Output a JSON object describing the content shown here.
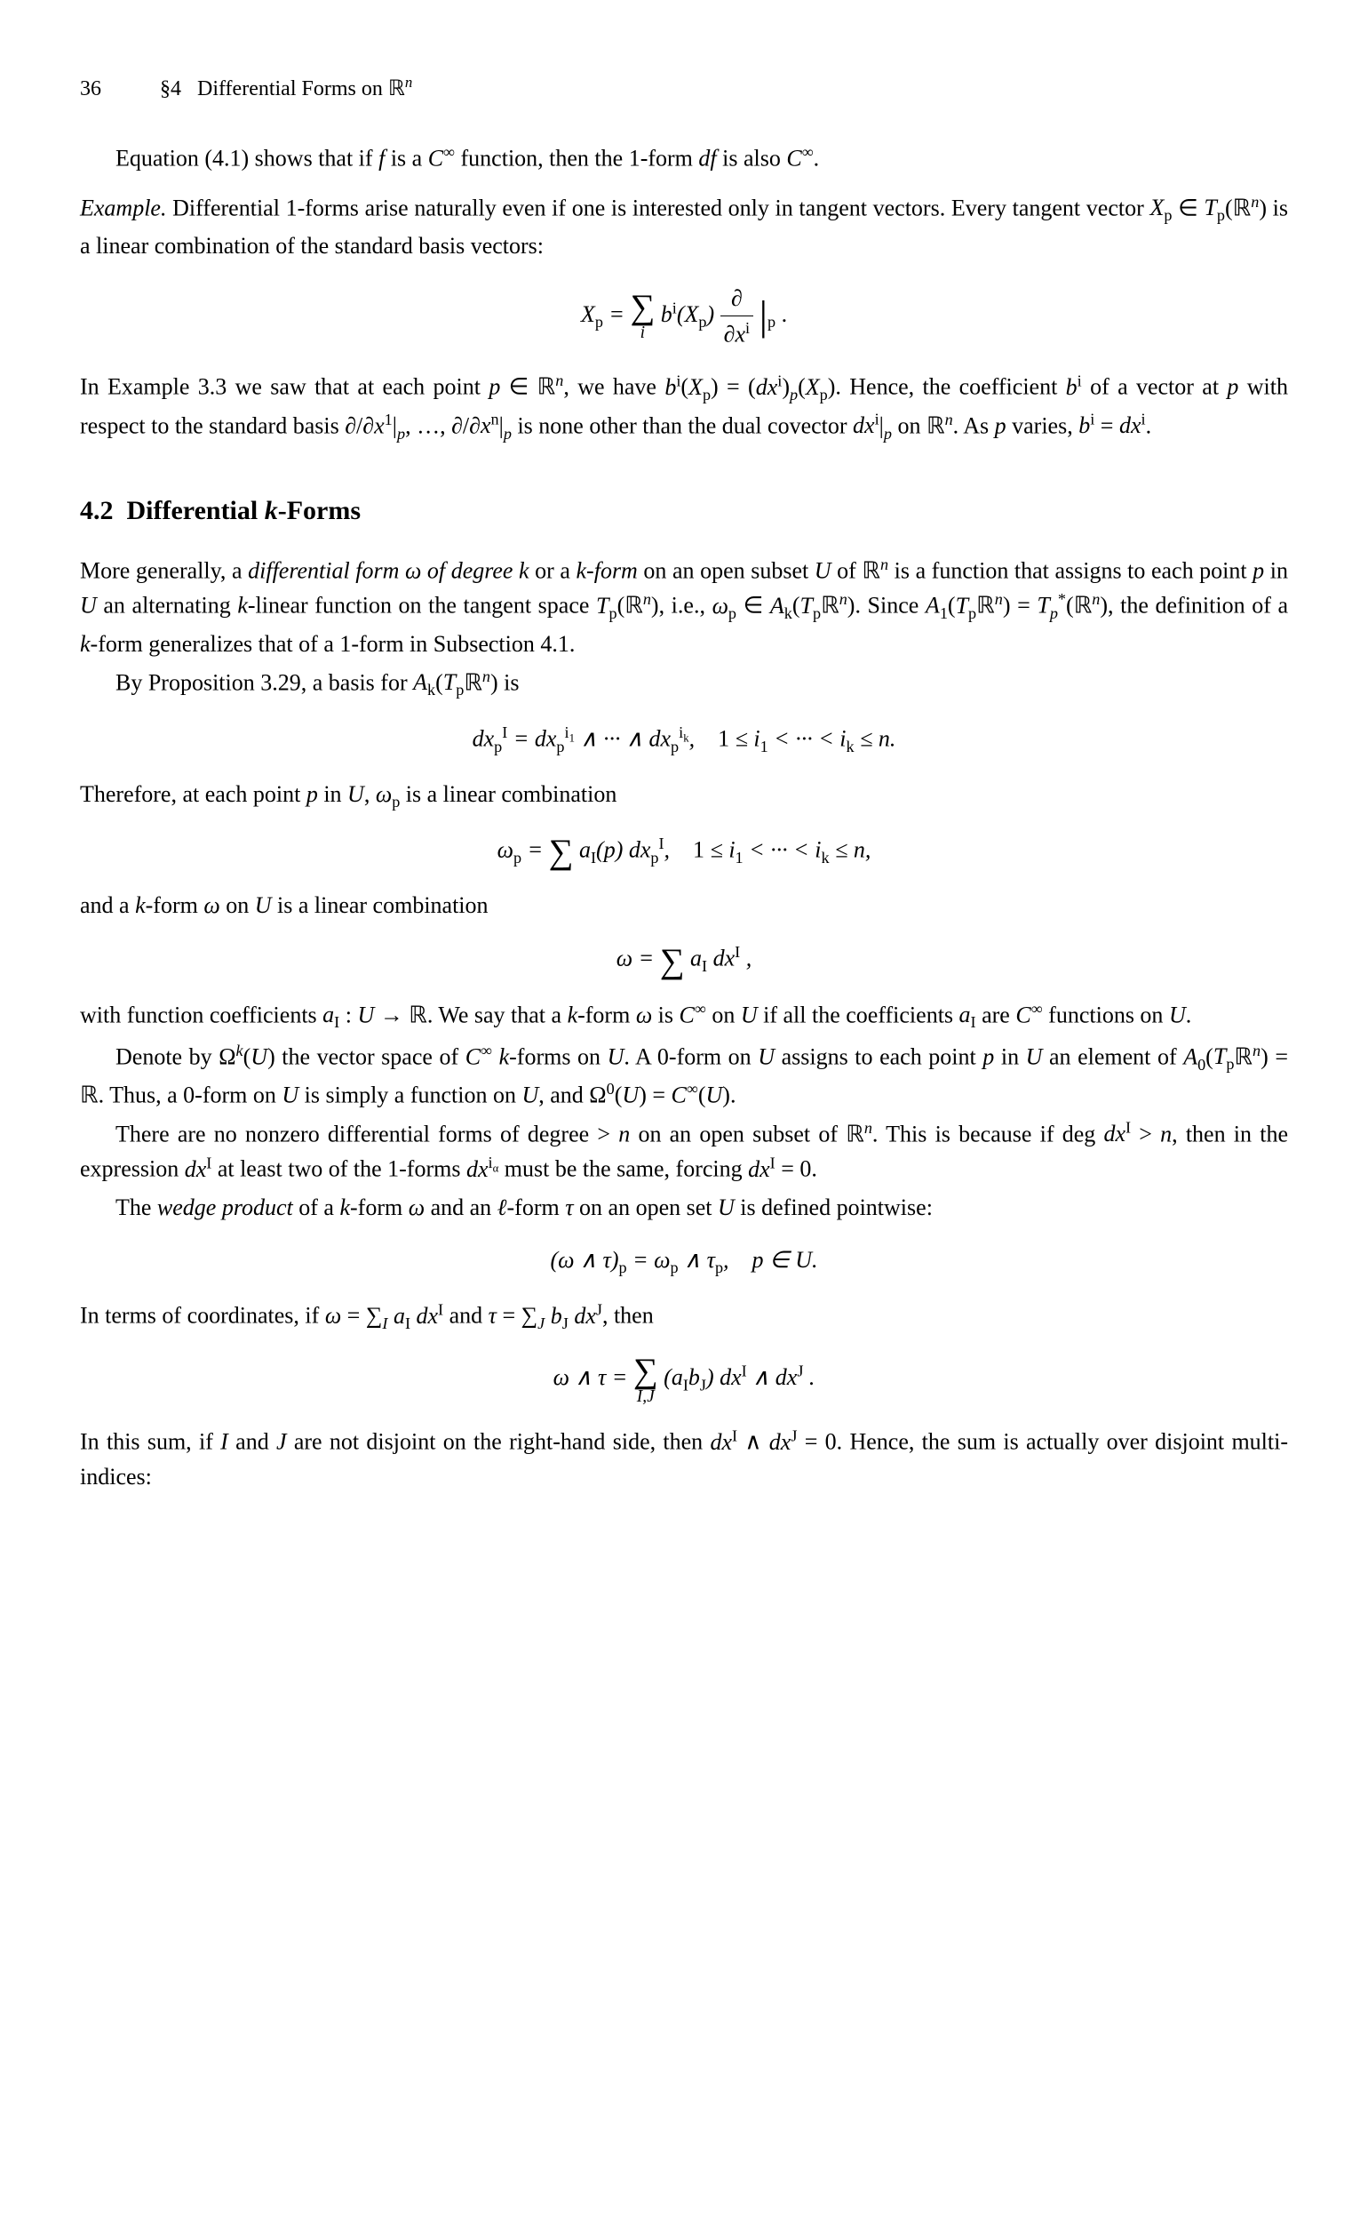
{
  "header": {
    "page_number": "36",
    "section_label": "§4   Differential Forms on ℝⁿ"
  },
  "para1": "Equation (4.1) shows that if f is a C∞ function, then the 1-form df is also C∞.",
  "example_label": "Example.",
  "para2": "Differential 1-forms arise naturally even if one is interested only in tangent vectors. Every tangent vector Xₚ ∈ Tₚ(ℝⁿ) is a linear combination of the standard basis vectors:",
  "eq1_lhs": "Xₚ = ",
  "eq1_sum_sub": "i",
  "eq1_rhs1": "bⁱ(Xₚ) ",
  "eq1_frac_num": "∂",
  "eq1_frac_den": "∂xⁱ",
  "eq1_sub": "p",
  "eq1_dot": " .",
  "para3": "In Example 3.3 we saw that at each point p ∈ ℝⁿ, we have bⁱ(Xₚ) = (dxⁱ)ₚ(Xₚ). Hence, the coefficient bⁱ of a vector at p with respect to the standard basis ∂/∂x¹|ₚ, …, ∂/∂xⁿ|ₚ is none other than the dual covector dxⁱ|ₚ on ℝⁿ. As p varies, bⁱ = dxⁱ.",
  "section_title": "4.2  Differential k-Forms",
  "para4": "More generally, a differential form ω of degree k or a k-form on an open subset U of ℝⁿ is a function that assigns to each point p in U an alternating k-linear function on the tangent space Tₚ(ℝⁿ), i.e., ωₚ ∈ Aₖ(Tₚℝⁿ). Since A₁(Tₚℝⁿ) = Tₚ*(ℝⁿ), the definition of a k-form generalizes that of a 1-form in Subsection 4.1.",
  "para5": "By Proposition 3.29, a basis for Aₖ(Tₚℝⁿ) is",
  "eq2": "dxₚᴵ = dxₚⁱ¹ ∧ ··· ∧ dxₚⁱᵏ,    1 ≤ i₁ < ··· < iₖ ≤ n.",
  "para6": "Therefore, at each point p in U, ωₚ is a linear combination",
  "eq3_pre": "ωₚ = ",
  "eq3_post": "aᴵ(p) dxₚᴵ,    1 ≤ i₁ < ··· < iₖ ≤ n,",
  "para7": "and a k-form ω on U is a linear combination",
  "eq4_pre": "ω = ",
  "eq4_post": "aᴵ dxᴵ ,",
  "para8": "with function coefficients aᴵ : U → ℝ. We say that a k-form ω is C∞ on U if all the coefficients aᴵ are C∞ functions on U.",
  "para9": "Denote by Ωᵏ(U) the vector space of C∞ k-forms on U. A 0-form on U assigns to each point p in U an element of A₀(Tₚℝⁿ) = ℝ. Thus, a 0-form on U is simply a function on U, and Ω⁰(U) = C∞(U).",
  "para10": "There are no nonzero differential forms of degree > n on an open subset of ℝⁿ. This is because if deg dxᴵ > n, then in the expression dxᴵ at least two of the 1-forms dxⁱᵅ must be the same, forcing dxᴵ = 0.",
  "para11": "The wedge product of a k-form ω and an ℓ-form τ on an open set U is defined pointwise:",
  "eq5": "(ω ∧ τ)ₚ = ωₚ ∧ τₚ,    p ∈ U.",
  "para12": "In terms of coordinates, if ω = ∑ᴵ aᴵ dxᴵ and τ = ∑ⱼ bⱼ dxᴶ, then",
  "eq6_pre": "ω ∧ τ = ",
  "eq6_sum_sub": "I,J",
  "eq6_post": "(aᴵbⱼ) dxᴵ ∧ dxᴶ .",
  "para13": "In this sum, if I and J are not disjoint on the right-hand side, then dxᴵ ∧ dxᴶ = 0. Hence, the sum is actually over disjoint multi-indices:"
}
